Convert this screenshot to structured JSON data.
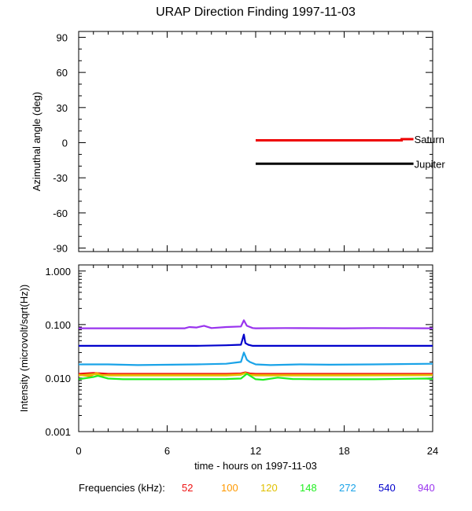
{
  "colors": {
    "f52": "#ee1111",
    "f100": "#ff9900",
    "f120": "#e0c000",
    "f148": "#22ee22",
    "f272": "#1aa3e8",
    "f540": "#0000cc",
    "f940": "#9933ee",
    "saturn": "#ee0000",
    "jupiter": "#000000"
  },
  "chart_data": [
    {
      "type": "line",
      "title": "URAP Direction Finding  1997-11-03",
      "ylabel": "Azimuthal angle (deg)",
      "xlim": [
        0,
        24
      ],
      "ylim": [
        -93,
        95
      ],
      "yticks": [
        "90",
        "60",
        "30",
        "0",
        "-30",
        "-60",
        "-90"
      ],
      "ytick_values": [
        90,
        60,
        30,
        0,
        -30,
        -60,
        -90
      ],
      "series": [
        {
          "name": "Saturn",
          "color_key": "saturn",
          "x": [
            12.0,
            21.9,
            21.9,
            22.7
          ],
          "y": [
            2,
            2,
            3,
            3
          ]
        },
        {
          "name": "Jupiter",
          "color_key": "jupiter",
          "x": [
            12.0,
            22.7
          ],
          "y": [
            -18,
            -18
          ]
        }
      ]
    },
    {
      "type": "line",
      "ylabel": "Intensity (microvolt/sqrt(Hz))",
      "xlabel": "time - hours on 1997-11-03",
      "xlim": [
        0,
        24
      ],
      "xticks": [
        "0",
        "6",
        "12",
        "18",
        "24"
      ],
      "xtick_values": [
        0,
        6,
        12,
        18,
        24
      ],
      "yscale": "log",
      "ylim": [
        0.001,
        1.3
      ],
      "yticks": [
        "1.000",
        "0.100",
        "0.010",
        "0.001"
      ],
      "ytick_values": [
        1.0,
        0.1,
        0.01,
        0.001
      ],
      "legend_title": "Frequencies (kHz):",
      "series": [
        {
          "name": "940",
          "color_key": "f940",
          "x": [
            0,
            7.2,
            7.5,
            8.0,
            8.5,
            9.0,
            10.0,
            11.0,
            11.2,
            11.4,
            11.8,
            12.0,
            14.0,
            18.0,
            20.0,
            24.0
          ],
          "y": [
            0.085,
            0.085,
            0.09,
            0.088,
            0.095,
            0.086,
            0.09,
            0.092,
            0.12,
            0.095,
            0.086,
            0.085,
            0.086,
            0.085,
            0.086,
            0.085
          ]
        },
        {
          "name": "540",
          "color_key": "f540",
          "x": [
            0,
            8.0,
            10.0,
            11.0,
            11.2,
            11.3,
            11.5,
            11.8,
            12.0,
            15.0,
            20.0,
            24.0
          ],
          "y": [
            0.04,
            0.04,
            0.041,
            0.042,
            0.065,
            0.045,
            0.042,
            0.04,
            0.04,
            0.04,
            0.04,
            0.04
          ]
        },
        {
          "name": "272",
          "color_key": "f272",
          "x": [
            0,
            2.0,
            4.0,
            8.0,
            10.0,
            11.0,
            11.2,
            11.4,
            11.6,
            12.0,
            13.0,
            15.0,
            17.0,
            20.0,
            24.0
          ],
          "y": [
            0.018,
            0.018,
            0.0175,
            0.018,
            0.0185,
            0.02,
            0.03,
            0.022,
            0.02,
            0.018,
            0.0175,
            0.018,
            0.0178,
            0.018,
            0.0185
          ]
        },
        {
          "name": "52",
          "color_key": "f52",
          "x": [
            0,
            1.0,
            2.0,
            6.0,
            10.0,
            11.0,
            11.3,
            11.6,
            12.0,
            18.0,
            24.0
          ],
          "y": [
            0.012,
            0.0125,
            0.012,
            0.012,
            0.012,
            0.0122,
            0.0128,
            0.0122,
            0.012,
            0.012,
            0.012
          ]
        },
        {
          "name": "100",
          "color_key": "f100",
          "x": [
            0,
            0.8,
            1.2,
            1.6,
            2.0,
            6.0,
            10.0,
            11.0,
            11.3,
            11.6,
            12.0,
            18.0,
            24.0
          ],
          "y": [
            0.0115,
            0.0108,
            0.0125,
            0.0112,
            0.0115,
            0.0115,
            0.0115,
            0.0118,
            0.0122,
            0.0116,
            0.0115,
            0.0115,
            0.0115
          ]
        },
        {
          "name": "120",
          "color_key": "f120",
          "x": [
            0,
            1.0,
            2.0,
            6.0,
            10.0,
            11.0,
            11.3,
            11.6,
            12.0,
            18.0,
            24.0
          ],
          "y": [
            0.0112,
            0.0118,
            0.0112,
            0.0112,
            0.0112,
            0.0115,
            0.0125,
            0.0114,
            0.0112,
            0.0112,
            0.0113
          ]
        },
        {
          "name": "148",
          "color_key": "f148",
          "x": [
            0,
            1.0,
            1.3,
            2.0,
            3.0,
            6.0,
            10.0,
            11.0,
            11.4,
            12.0,
            12.5,
            13.5,
            14.5,
            16.0,
            20.0,
            23.5,
            24.0
          ],
          "y": [
            0.0095,
            0.0105,
            0.011,
            0.0098,
            0.0095,
            0.0095,
            0.0096,
            0.0098,
            0.012,
            0.0095,
            0.0093,
            0.0102,
            0.0096,
            0.0095,
            0.0095,
            0.0098,
            0.0096
          ]
        }
      ]
    }
  ]
}
